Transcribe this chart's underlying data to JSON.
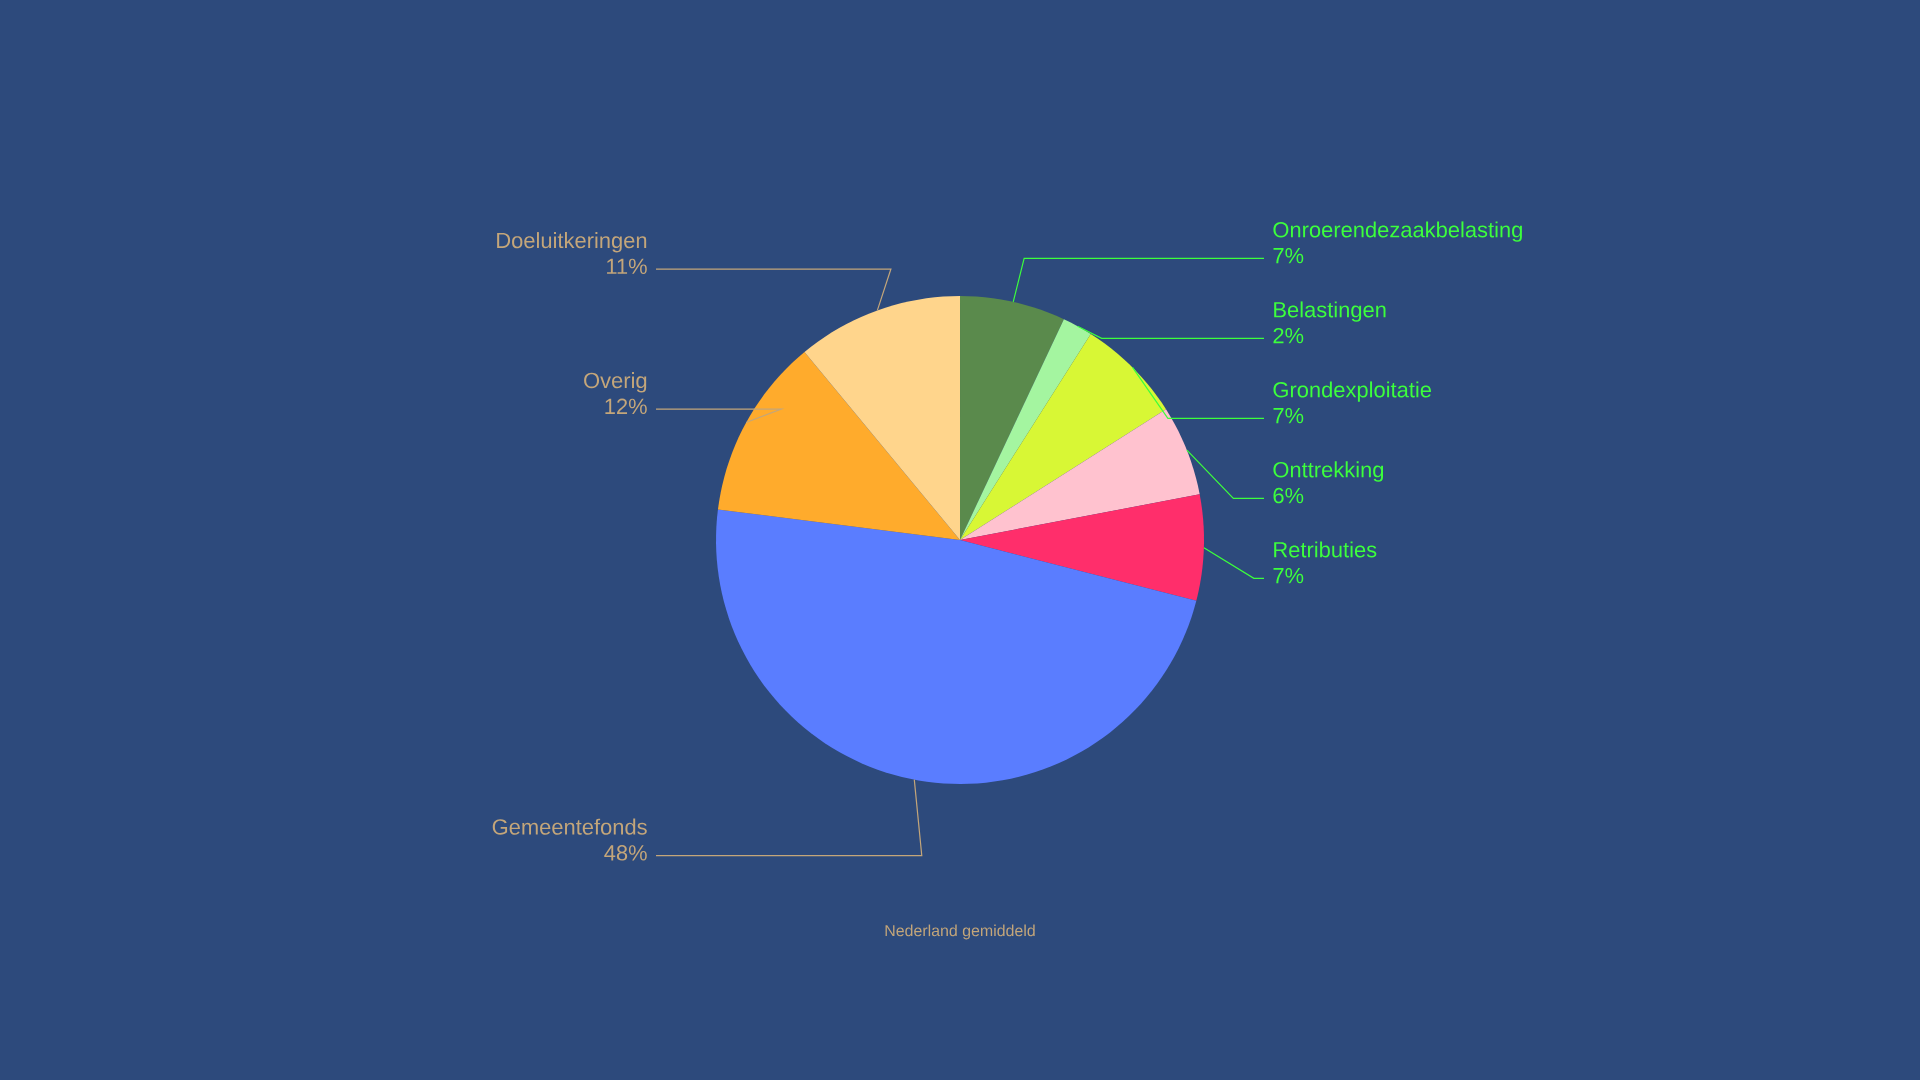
{
  "chart_data": {
    "type": "pie",
    "categories": [
      "Onroerendezaakbelasting",
      "Belastingen",
      "Grondexploitatie",
      "Onttrekking",
      "Retributies",
      "Gemeentefonds",
      "Overig",
      "Doeluitkeringen"
    ],
    "values": [
      7,
      2,
      7,
      6,
      7,
      48,
      12,
      11
    ],
    "colors": [
      "#5a8a4c",
      "#a4f5a0",
      "#d8f735",
      "#ffc2cf",
      "#ff2e6b",
      "#5a7dff",
      "#ffab2c",
      "#ffd58c"
    ],
    "value_labels": [
      "7%",
      "2%",
      "7%",
      "6%",
      "7%",
      "48%",
      "12%",
      "11%"
    ],
    "annotations": [
      "Nederland gemiddeld"
    ]
  }
}
